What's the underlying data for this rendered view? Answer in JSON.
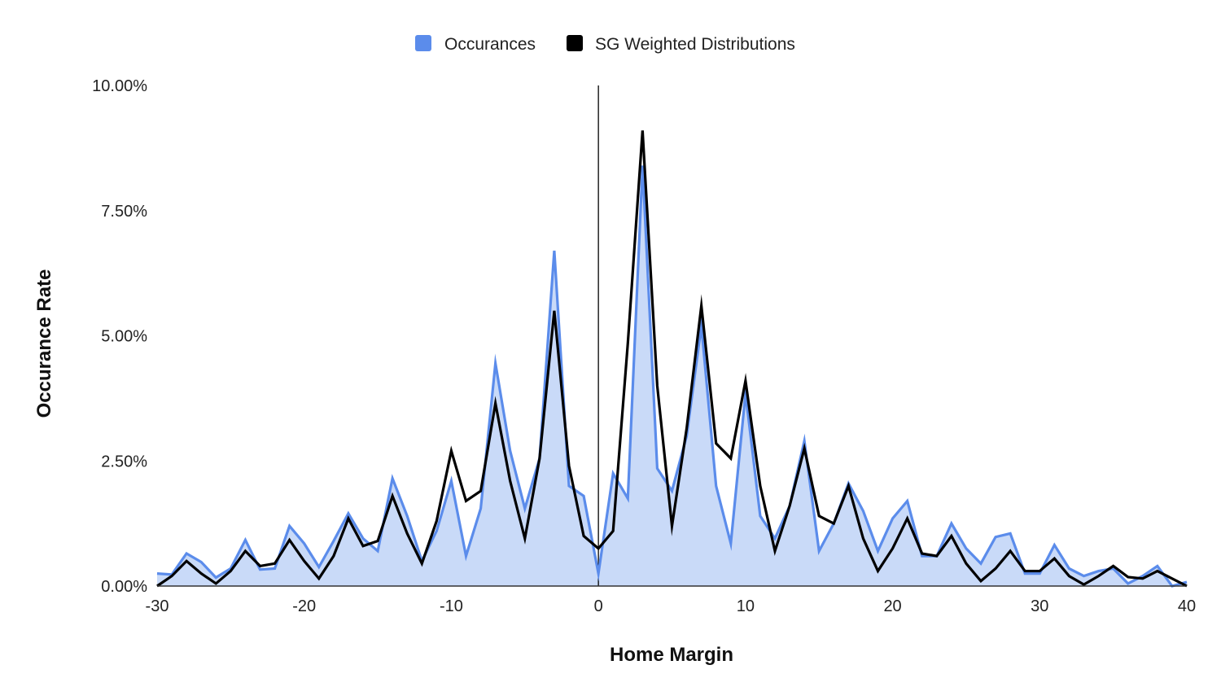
{
  "chart_data": {
    "type": "area",
    "title": "",
    "xlabel": "Home Margin",
    "ylabel": "Occurance Rate",
    "xlim": [
      -30,
      40
    ],
    "ylim": [
      0,
      10
    ],
    "x_ticks": [
      -30,
      -20,
      -10,
      0,
      10,
      20,
      30,
      40
    ],
    "x_tick_labels": [
      "-30",
      "-20",
      "-10",
      "0",
      "10",
      "20",
      "30",
      "40"
    ],
    "y_ticks": [
      0,
      2.5,
      5,
      7.5,
      10
    ],
    "y_tick_labels": [
      "0.00%",
      "2.50%",
      "5.00%",
      "7.50%",
      "10.00%"
    ],
    "y_unit": "%",
    "grid": false,
    "zero_line": true,
    "legend_position": "top",
    "x": [
      -30,
      -29,
      -28,
      -27,
      -26,
      -25,
      -24,
      -23,
      -22,
      -21,
      -20,
      -19,
      -18,
      -17,
      -16,
      -15,
      -14,
      -13,
      -12,
      -11,
      -10,
      -9,
      -8,
      -7,
      -6,
      -5,
      -4,
      -3,
      -2,
      -1,
      0,
      1,
      2,
      3,
      4,
      5,
      6,
      7,
      8,
      9,
      10,
      11,
      12,
      13,
      14,
      15,
      16,
      17,
      18,
      19,
      20,
      21,
      22,
      23,
      24,
      25,
      26,
      27,
      28,
      29,
      30,
      31,
      32,
      33,
      34,
      35,
      36,
      37,
      38,
      39,
      40
    ],
    "series": [
      {
        "name": "Occurances",
        "color": "#5b8ceb",
        "fill": "#c9daf8",
        "style": "area",
        "values": [
          0.25,
          0.23,
          0.65,
          0.48,
          0.17,
          0.35,
          0.92,
          0.33,
          0.35,
          1.2,
          0.85,
          0.38,
          0.9,
          1.45,
          0.95,
          0.7,
          2.15,
          1.4,
          0.5,
          1.1,
          2.1,
          0.6,
          1.55,
          4.45,
          2.7,
          1.55,
          2.55,
          6.7,
          2.0,
          1.8,
          0.25,
          2.25,
          1.75,
          8.4,
          2.35,
          1.9,
          3.0,
          5.2,
          2.0,
          0.85,
          3.85,
          1.4,
          0.95,
          1.6,
          2.9,
          0.7,
          1.25,
          2.05,
          1.5,
          0.7,
          1.35,
          1.7,
          0.6,
          0.6,
          1.25,
          0.75,
          0.45,
          0.98,
          1.05,
          0.25,
          0.25,
          0.82,
          0.35,
          0.2,
          0.3,
          0.35,
          0.05,
          0.2,
          0.4,
          0.0,
          0.08
        ]
      },
      {
        "name": "SG Weighted Distributions",
        "color": "#000000",
        "style": "line",
        "values": [
          0.0,
          0.2,
          0.5,
          0.25,
          0.05,
          0.3,
          0.7,
          0.4,
          0.45,
          0.92,
          0.5,
          0.15,
          0.6,
          1.35,
          0.8,
          0.9,
          1.8,
          1.05,
          0.45,
          1.3,
          2.7,
          1.7,
          1.9,
          3.65,
          2.1,
          0.95,
          2.55,
          5.5,
          2.4,
          1.0,
          0.75,
          1.1,
          4.85,
          9.1,
          4.0,
          1.2,
          3.15,
          5.6,
          2.85,
          2.55,
          4.1,
          2.0,
          0.7,
          1.6,
          2.75,
          1.4,
          1.25,
          2.0,
          0.95,
          0.3,
          0.75,
          1.35,
          0.65,
          0.6,
          1.0,
          0.45,
          0.1,
          0.35,
          0.7,
          0.3,
          0.3,
          0.55,
          0.2,
          0.03,
          0.2,
          0.4,
          0.18,
          0.15,
          0.3,
          0.15,
          0.0
        ]
      }
    ]
  }
}
